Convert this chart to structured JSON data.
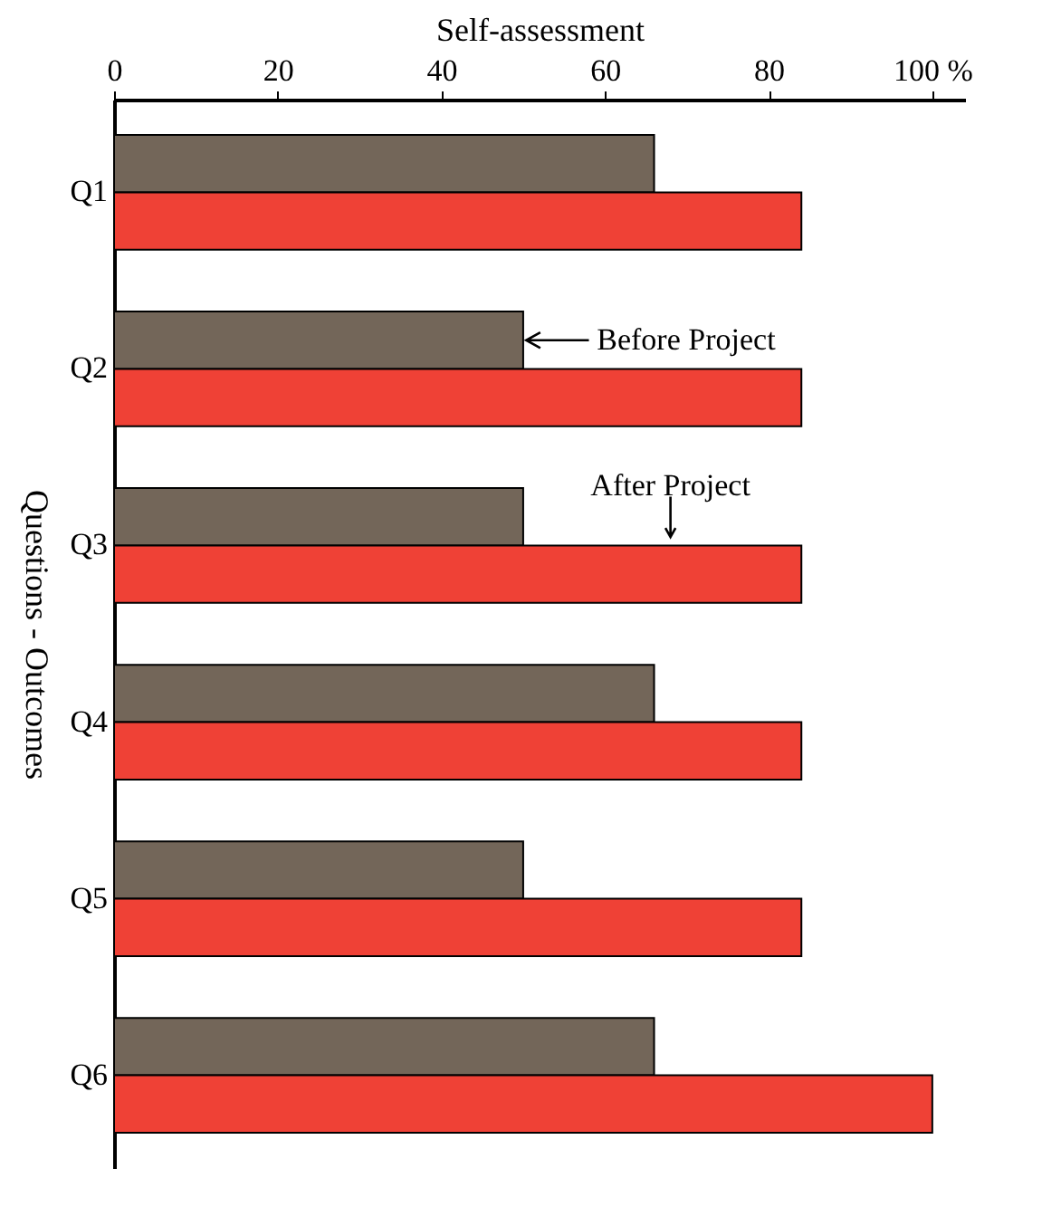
{
  "chart_data": {
    "type": "bar",
    "orientation": "horizontal",
    "xlabel": "Self-assessment",
    "ylabel": "Questions - Outcomes",
    "categories": [
      "Q1",
      "Q2",
      "Q3",
      "Q4",
      "Q5",
      "Q6"
    ],
    "series": [
      {
        "color": "#736659",
        "values": [
          66,
          50,
          50,
          66,
          50,
          66
        ]
      },
      {
        "color": "#ef4136",
        "values": [
          84,
          84,
          84,
          84,
          84,
          100
        ]
      }
    ],
    "annotations": [
      {
        "text": "Before Project",
        "x": 50,
        "y": "Q2"
      },
      {
        "text": "After Project",
        "x": 68,
        "y": "Q3"
      }
    ],
    "xlim": [
      0,
      104
    ],
    "xticks": [
      0,
      20,
      40,
      60,
      80,
      {
        "value": 100,
        "label": "100 %"
      }
    ],
    "grid": false,
    "legend": false
  }
}
